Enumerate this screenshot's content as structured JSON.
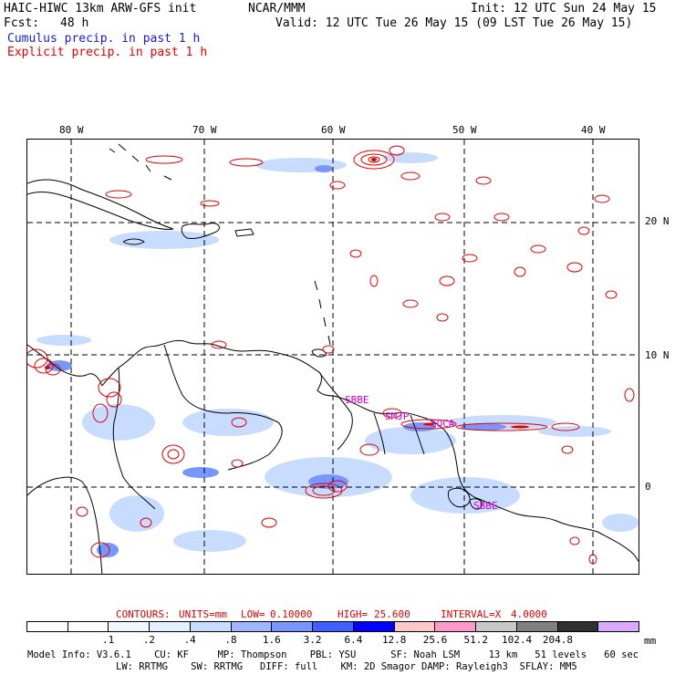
{
  "header": {
    "model_title": "HAIC-HIWC 13km ARW-GFS init",
    "institution": "NCAR/MMM",
    "init_time": "Init: 12 UTC Sun 24 May 15",
    "fcst_label": "Fcst:",
    "fcst_hours": "48 h",
    "valid_time": "Valid: 12 UTC Tue 26 May 15 (09 LST Tue 26 May 15)",
    "legend_cumulus": "Cumulus precip. in past 1 h",
    "legend_explicit": "Explicit precip. in past 1 h"
  },
  "map": {
    "longitude_labels": [
      "80 W",
      "70 W",
      "60 W",
      "50 W",
      "40 W"
    ],
    "latitude_labels": [
      "20 N",
      "10 N",
      "0"
    ],
    "station_labels": [
      "SBBE",
      "SMJP",
      "SOCA",
      "SBBE"
    ]
  },
  "contours": {
    "contours_label": "CONTOURS:",
    "units_label": "UNITS=mm",
    "low_label": "LOW=",
    "low_value": "0.10000",
    "high_label": "HIGH=",
    "high_value": "25.600",
    "interval_label": "INTERVAL=X",
    "interval_value": "4.0000"
  },
  "colorbar": {
    "colors": [
      "#ffffff",
      "#ffffff",
      "#f0f8ff",
      "#e0f0ff",
      "#c8dcff",
      "#a0b4ff",
      "#7896ff",
      "#4060ff",
      "#0000ff",
      "#ffc8c8",
      "#ff99cc",
      "#c8c8c8",
      "#808080",
      "#303030",
      "#d8aaff"
    ],
    "labels": [
      ".1",
      ".2",
      ".4",
      ".8",
      "1.6",
      "3.2",
      "6.4",
      "12.8",
      "25.6",
      "51.2",
      "102.4",
      "204.8"
    ],
    "unit": "mm"
  },
  "model_info": {
    "line1": "Model Info: V3.6.1    CU: KF     MP: Thompson    PBL: YSU      SF: Noah LSM     13 km   51 levels   60 sec",
    "line2": "LW: RRTMG    SW: RRTMG   DIFF: full    KM: 2D Smagor DAMP: Rayleigh3  SFLAY: MM5"
  }
}
